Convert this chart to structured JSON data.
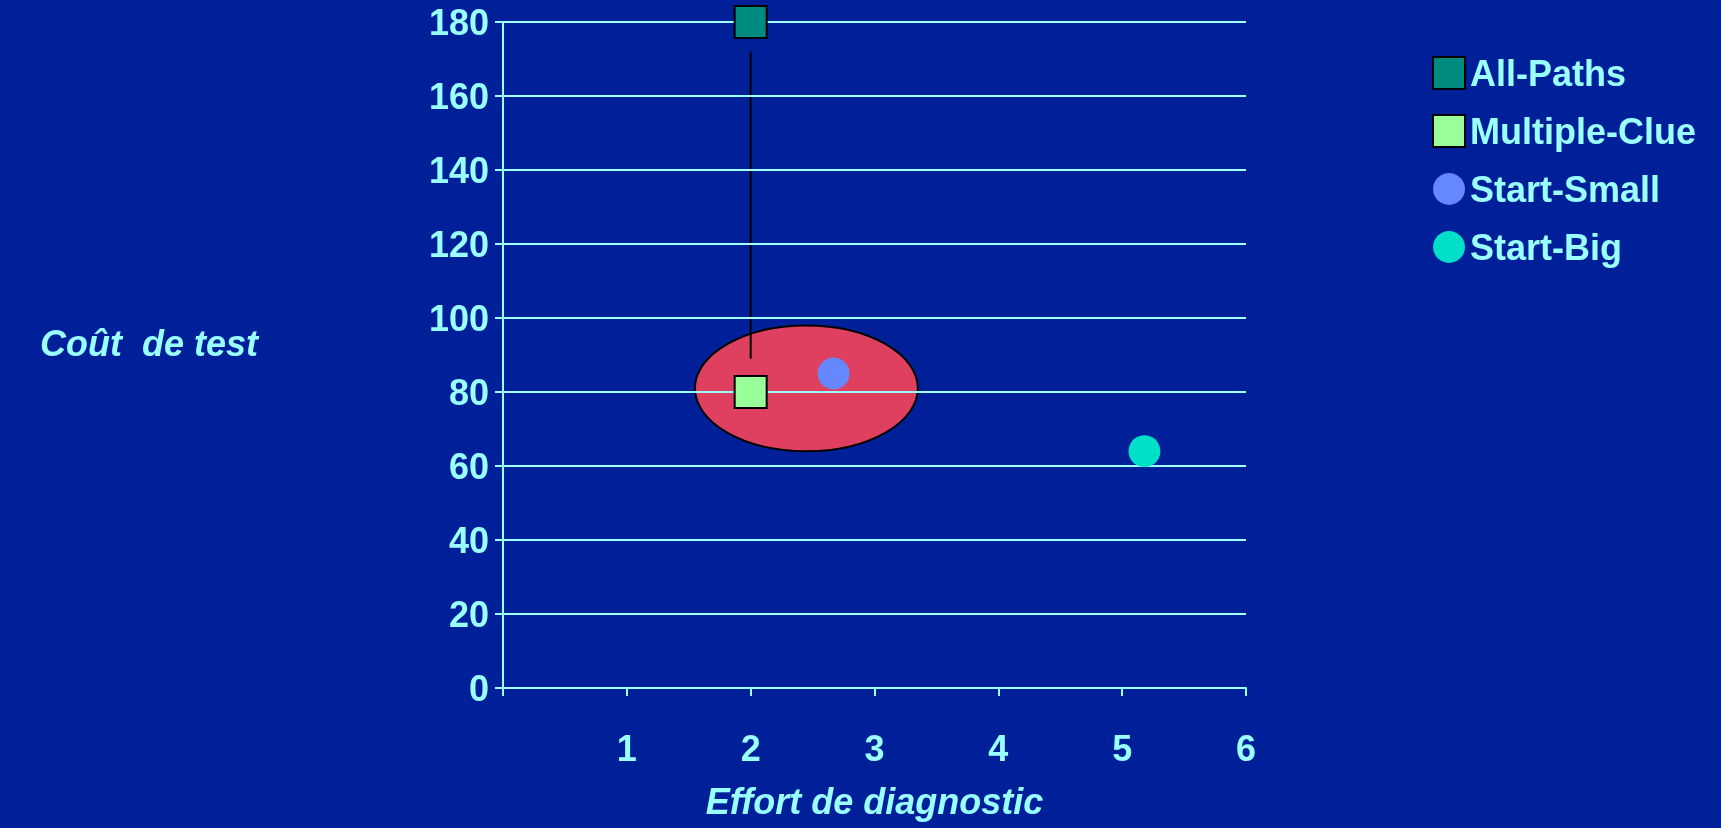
{
  "chart_data": {
    "type": "scatter",
    "xlabel": "Effort de diagnostic",
    "ylabel": "Coût  de test",
    "xlim": [
      0,
      6
    ],
    "xticks": [
      {
        "value": 0,
        "label": null
      },
      1,
      2,
      3,
      4,
      5,
      6
    ],
    "ylim": [
      0,
      180
    ],
    "yticks": [
      0,
      20,
      40,
      60,
      80,
      100,
      120,
      140,
      160,
      180
    ],
    "grid": "y",
    "legend": "right",
    "series": [
      {
        "name": "All-Paths",
        "color": "#008b80",
        "marker": "square",
        "x": [
          2
        ],
        "values": [
          180
        ]
      },
      {
        "name": "Multiple-Clue",
        "color": "#99ff99",
        "marker": "square",
        "x": [
          2
        ],
        "values": [
          80
        ]
      },
      {
        "name": "Start-Small",
        "color": "#6688ff",
        "marker": "circle",
        "x": [
          2.67
        ],
        "values": [
          85
        ]
      },
      {
        "name": "Start-Big",
        "color": "#00e0c8",
        "marker": "circle",
        "x": [
          5.18
        ],
        "values": [
          64
        ]
      }
    ]
  }
}
